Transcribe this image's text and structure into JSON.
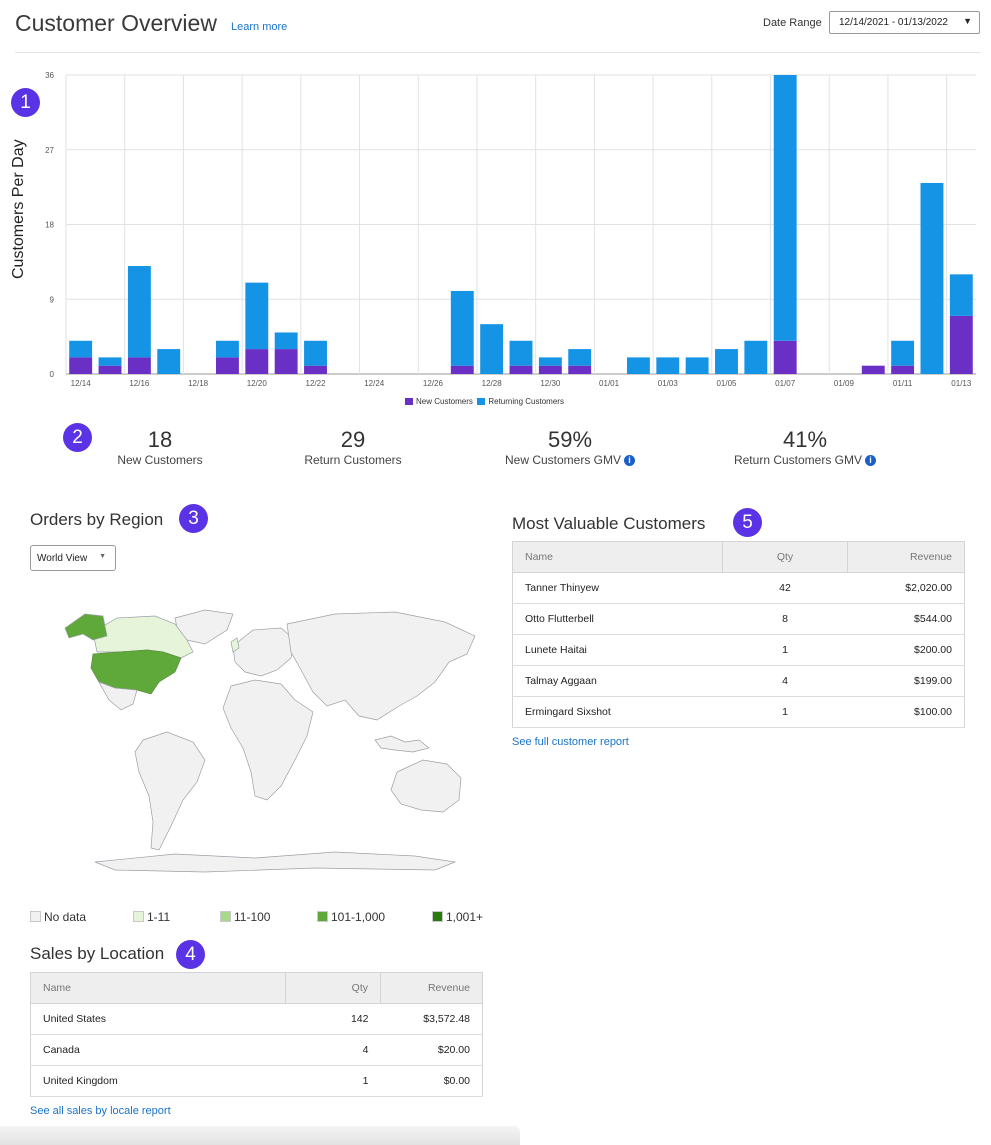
{
  "header": {
    "title": "Customer Overview",
    "learn_more": "Learn more",
    "date_range_label": "Date Range",
    "date_range_value": "12/14/2021 - 01/13/2022",
    "date_range_caret": "▼"
  },
  "badges": [
    "1",
    "2",
    "3",
    "4",
    "5"
  ],
  "chart_data": {
    "type": "bar",
    "stacked": true,
    "ylabel": "Customers Per Day",
    "ylim": [
      0,
      36
    ],
    "yticks": [
      0,
      9,
      18,
      27,
      36
    ],
    "grid": true,
    "legend_position": "bottom",
    "categories": [
      "12/14",
      "12/15",
      "12/16",
      "12/17",
      "12/18",
      "12/19",
      "12/20",
      "12/21",
      "12/22",
      "12/23",
      "12/24",
      "12/25",
      "12/26",
      "12/27",
      "12/28",
      "12/29",
      "12/30",
      "12/31",
      "01/01",
      "01/02",
      "01/03",
      "01/04",
      "01/05",
      "01/06",
      "01/07",
      "01/08",
      "01/09",
      "01/10",
      "01/11",
      "01/12",
      "01/13"
    ],
    "xtick_labels": [
      "12/14",
      "12/16",
      "12/18",
      "12/20",
      "12/22",
      "12/24",
      "12/26",
      "12/28",
      "12/30",
      "01/01",
      "01/03",
      "01/05",
      "01/07",
      "01/09",
      "01/11",
      "01/13"
    ],
    "series": [
      {
        "name": "New Customers",
        "color": "#6a2fc4",
        "values": [
          2,
          1,
          2,
          0,
          0,
          2,
          3,
          3,
          1,
          0,
          0,
          0,
          0,
          1,
          0,
          1,
          1,
          1,
          0,
          0,
          0,
          0,
          0,
          0,
          4,
          0,
          0,
          1,
          1,
          0,
          7
        ]
      },
      {
        "name": "Returning Customers",
        "color": "#1594e6",
        "values": [
          2,
          1,
          11,
          3,
          0,
          2,
          8,
          2,
          3,
          0,
          0,
          0,
          0,
          9,
          6,
          3,
          1,
          2,
          0,
          2,
          2,
          2,
          3,
          4,
          32,
          0,
          0,
          0,
          3,
          23,
          5
        ]
      }
    ]
  },
  "stats": [
    {
      "value": "18",
      "label": "New Customers",
      "info": false
    },
    {
      "value": "29",
      "label": "Return Customers",
      "info": false
    },
    {
      "value": "59%",
      "label": "New Customers GMV",
      "info": true
    },
    {
      "value": "41%",
      "label": "Return Customers GMV",
      "info": true
    }
  ],
  "info_glyph": "i",
  "orders_by_region": {
    "title": "Orders by Region",
    "view_select": "World View",
    "view_caret": "▼",
    "legend": [
      {
        "label": "No data",
        "color": "#f1f1f1"
      },
      {
        "label": "1-11",
        "color": "#e6f5d9"
      },
      {
        "label": "11-100",
        "color": "#a8d98a"
      },
      {
        "label": "101-1,000",
        "color": "#5fa93a"
      },
      {
        "label": "1,001+",
        "color": "#2a7a12"
      }
    ]
  },
  "sales_by_location": {
    "title": "Sales by Location",
    "columns": [
      "Name",
      "Qty",
      "Revenue"
    ],
    "rows": [
      {
        "name": "United States",
        "qty": "142",
        "revenue": "$3,572.48"
      },
      {
        "name": "Canada",
        "qty": "4",
        "revenue": "$20.00"
      },
      {
        "name": "United Kingdom",
        "qty": "1",
        "revenue": "$0.00"
      }
    ],
    "link": "See all sales by locale report"
  },
  "most_valuable": {
    "title": "Most Valuable Customers",
    "columns": [
      "Name",
      "Qty",
      "Revenue"
    ],
    "rows": [
      {
        "name": "Tanner Thinyew",
        "qty": "42",
        "revenue": "$2,020.00"
      },
      {
        "name": "Otto Flutterbell",
        "qty": "8",
        "revenue": "$544.00"
      },
      {
        "name": "Lunete Haitai",
        "qty": "1",
        "revenue": "$200.00"
      },
      {
        "name": "Talmay Aggaan",
        "qty": "4",
        "revenue": "$199.00"
      },
      {
        "name": "Ermingard Sixshot",
        "qty": "1",
        "revenue": "$100.00"
      }
    ],
    "link": "See full customer report"
  }
}
